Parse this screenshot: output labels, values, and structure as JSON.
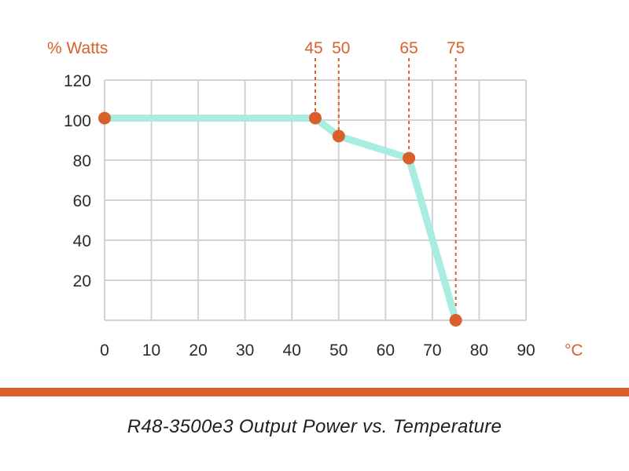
{
  "chart_data": {
    "type": "line",
    "title": "R48-3500e3 Output Power vs. Temperature",
    "xlabel": "°C",
    "ylabel": "% Watts",
    "xlim": [
      0,
      90
    ],
    "ylim": [
      0,
      120
    ],
    "x_ticks": [
      0,
      10,
      20,
      30,
      40,
      50,
      60,
      70,
      80,
      90
    ],
    "y_ticks": [
      20,
      40,
      60,
      80,
      100,
      120
    ],
    "grid": true,
    "series": [
      {
        "name": "Output Power",
        "x": [
          0,
          45,
          50,
          65,
          75
        ],
        "y": [
          101,
          101,
          92,
          81,
          0
        ]
      }
    ],
    "annotations": [
      {
        "x": 45,
        "label": "45"
      },
      {
        "x": 50,
        "label": "50"
      },
      {
        "x": 65,
        "label": "65"
      },
      {
        "x": 75,
        "label": "75"
      }
    ]
  },
  "colors": {
    "line": "#a8ece2",
    "accent": "#d9602a",
    "grid": "#d2d2d2"
  }
}
